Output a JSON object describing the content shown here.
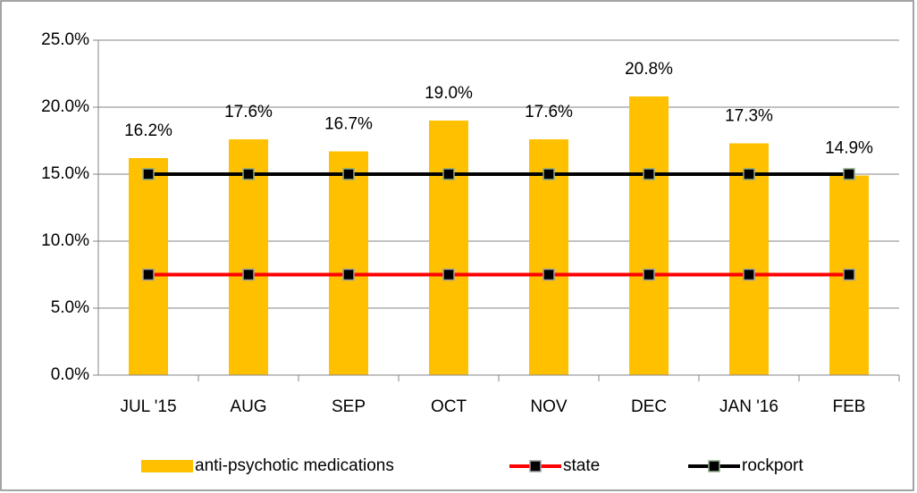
{
  "chart_data": {
    "type": "bar",
    "categories": [
      "JUL '15",
      "AUG",
      "SEP",
      "OCT",
      "NOV",
      "DEC",
      "JAN '16",
      "FEB"
    ],
    "series": [
      {
        "name": "anti-psychotic medications",
        "type": "bar",
        "color": "#ffc000",
        "values": [
          16.2,
          17.6,
          16.7,
          19.0,
          17.6,
          20.8,
          17.3,
          14.9
        ],
        "value_labels": [
          "16.2%",
          "17.6%",
          "16.7%",
          "19.0%",
          "17.6%",
          "20.8%",
          "17.3%",
          "14.9%"
        ]
      },
      {
        "name": "state",
        "type": "line",
        "color": "#ff0000",
        "marker_edge": "#a0a0a0",
        "values": [
          7.5,
          7.5,
          7.5,
          7.5,
          7.5,
          7.5,
          7.5,
          7.5
        ]
      },
      {
        "name": "rockport",
        "type": "line",
        "color": "#000000",
        "marker_edge": "#8fae8a",
        "values": [
          15,
          15,
          15,
          15,
          15,
          15,
          15,
          15
        ]
      }
    ],
    "ylim": [
      0,
      25
    ],
    "yticks": [
      {
        "value": 0,
        "label": "0.0%"
      },
      {
        "value": 5,
        "label": "5.0%"
      },
      {
        "value": 10,
        "label": "10.0%"
      },
      {
        "value": 15,
        "label": "15.0%"
      },
      {
        "value": 20,
        "label": "20.0%"
      },
      {
        "value": 25,
        "label": "25.0%"
      }
    ],
    "grid": true,
    "legend": "bottom"
  }
}
